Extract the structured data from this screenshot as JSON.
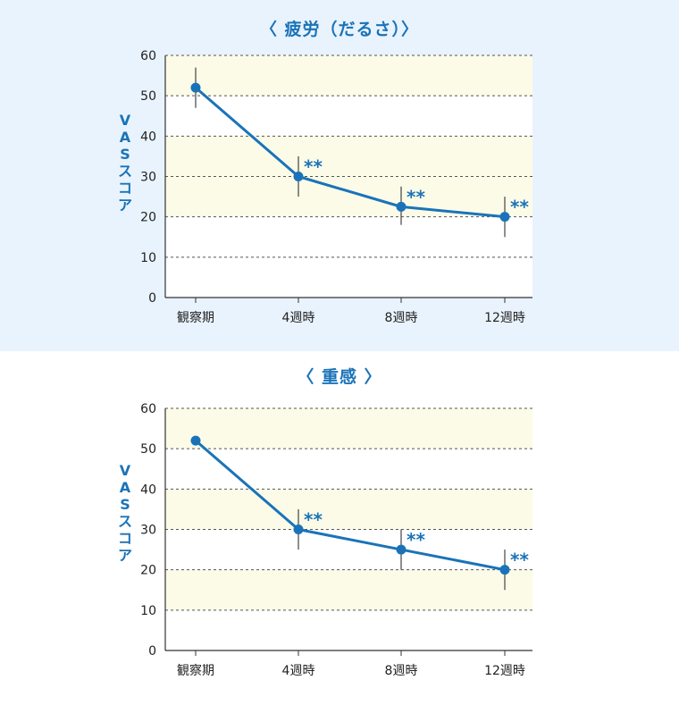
{
  "colors": {
    "accent": "#1a73b8",
    "band": "#fbfbe8",
    "panel_top_bg": "#e9f3fd",
    "panel_bottom_bg": "#ffffff",
    "axis": "#333333",
    "errorbar": "#444444",
    "grid": "#555555"
  },
  "chart_data": [
    {
      "type": "line",
      "title": "〈 疲労（だるさ）〉",
      "ylabel": "VASスコア",
      "xlabel": "",
      "categories": [
        "観察期",
        "4週時",
        "8週時",
        "12週時"
      ],
      "values": [
        52,
        30,
        22.5,
        20
      ],
      "error_low": [
        47,
        25,
        18,
        15
      ],
      "error_high": [
        57,
        35,
        27.5,
        25
      ],
      "significance": [
        "",
        "**",
        "**",
        "**"
      ],
      "ylim": [
        0,
        60
      ],
      "yticks": [
        "0",
        "10",
        "20",
        "30",
        "40",
        "50",
        "60"
      ],
      "grid": "dashed horizontal",
      "shaded_bands": [
        [
          20,
          40
        ],
        [
          50,
          60
        ]
      ]
    },
    {
      "type": "line",
      "title": "〈 重感 〉",
      "ylabel": "VASスコア",
      "xlabel": "",
      "categories": [
        "観察期",
        "4週時",
        "8週時",
        "12週時"
      ],
      "values": [
        52,
        30,
        25,
        20
      ],
      "error_low": [
        null,
        25,
        20,
        15
      ],
      "error_high": [
        null,
        35,
        30,
        25
      ],
      "significance": [
        "",
        "**",
        "**",
        "**"
      ],
      "ylim": [
        0,
        60
      ],
      "yticks": [
        "0",
        "10",
        "20",
        "30",
        "40",
        "50",
        "60"
      ],
      "grid": "dashed horizontal",
      "shaded_bands": [
        [
          10,
          20
        ],
        [
          30,
          40
        ],
        [
          50,
          60
        ]
      ]
    }
  ]
}
